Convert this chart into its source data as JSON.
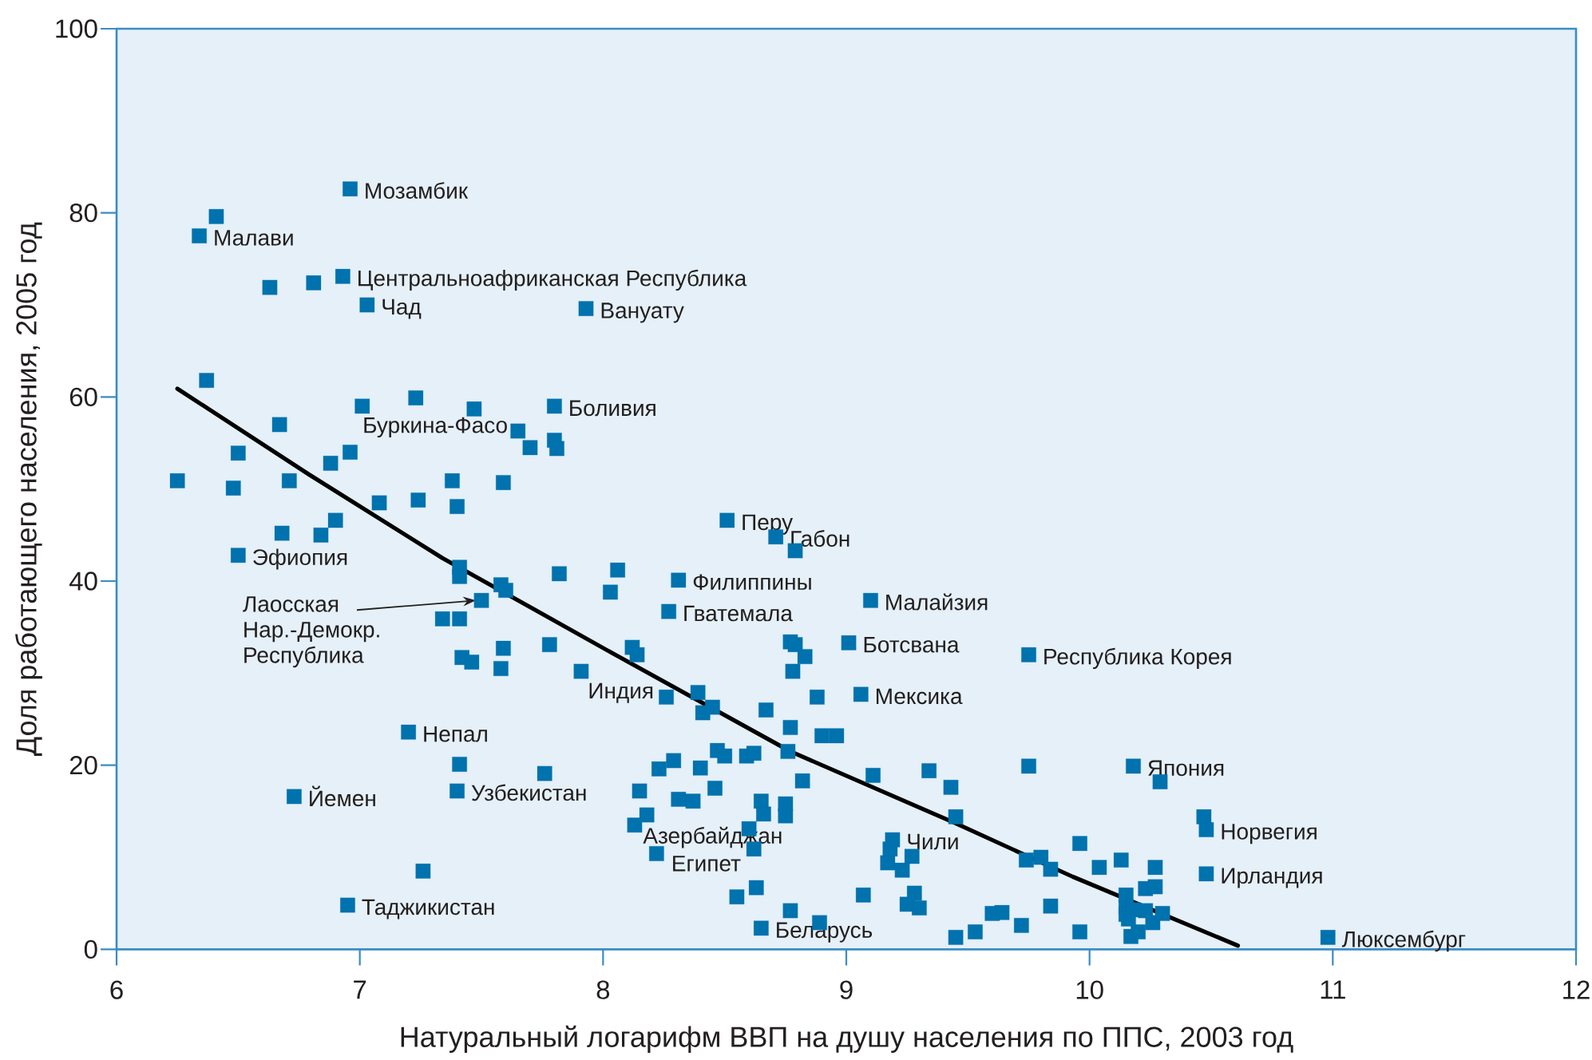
{
  "chart_data": {
    "type": "scatter",
    "xlabel": "Натуральный логарифм ВВП на душу населения по ППС, 2003 год",
    "ylabel": "Доля работающего населения, 2005 год",
    "xlim": [
      6,
      12
    ],
    "ylim": [
      0,
      100
    ],
    "xticks": [
      6,
      7,
      8,
      9,
      10,
      11,
      12
    ],
    "yticks": [
      0,
      20,
      40,
      60,
      80,
      100
    ],
    "marker": "square",
    "series": [
      {
        "color": "#0072ad",
        "x": [
          6.96,
          6.41,
          6.34,
          6.63,
          6.81,
          6.93,
          7.03,
          7.93,
          6.37,
          7.01,
          7.23,
          7.47,
          7.8,
          6.67,
          7.65,
          7.7,
          7.8,
          7.81,
          6.5,
          6.96,
          6.88,
          6.25,
          6.48,
          6.71,
          7.38,
          7.59,
          7.08,
          7.24,
          7.4,
          6.9,
          6.68,
          6.84,
          6.5,
          7.41,
          7.41,
          7.58,
          7.6,
          7.82,
          8.06,
          8.03,
          7.5,
          7.34,
          7.41,
          7.59,
          7.78,
          7.42,
          7.46,
          7.58,
          7.91,
          7.2,
          7.41,
          7.76,
          7.4,
          6.73,
          7.26,
          6.95,
          8.51,
          8.71,
          8.79,
          8.31,
          8.27,
          9.1,
          9.01,
          9.75,
          8.77,
          8.79,
          8.83,
          8.78,
          8.12,
          8.14,
          9.06,
          8.88,
          8.26,
          8.39,
          8.45,
          8.41,
          8.67,
          8.77,
          8.9,
          8.96,
          8.47,
          8.5,
          8.59,
          8.62,
          8.76,
          8.23,
          8.29,
          8.4,
          8.82,
          9.11,
          9.34,
          9.43,
          9.75,
          8.15,
          8.46,
          8.31,
          8.37,
          8.18,
          8.13,
          8.65,
          8.66,
          8.75,
          8.75,
          9.45,
          8.6,
          8.62,
          8.22,
          9.19,
          9.18,
          9.17,
          9.27,
          9.23,
          9.74,
          9.8,
          9.84,
          8.55,
          8.63,
          9.07,
          9.28,
          9.25,
          9.3,
          8.77,
          8.89,
          8.65,
          9.45,
          9.53,
          9.6,
          9.64,
          9.72,
          9.84,
          10.18,
          10.29,
          10.47,
          10.48,
          10.48,
          10.98,
          9.96,
          10.04,
          10.13,
          10.27,
          9.96,
          10.15,
          10.23,
          10.27,
          10.15,
          10.15,
          10.18,
          10.23,
          10.26,
          10.3,
          10.17,
          10.2,
          10.16
        ],
        "values": [
          82.6,
          79.6,
          77.5,
          71.9,
          72.4,
          73.1,
          70.0,
          69.6,
          61.8,
          59.0,
          59.9,
          58.7,
          59.0,
          57.0,
          56.3,
          54.5,
          55.3,
          54.4,
          53.9,
          54.0,
          52.8,
          50.9,
          50.1,
          50.9,
          50.9,
          50.7,
          48.5,
          48.8,
          48.1,
          46.6,
          45.2,
          45.0,
          42.8,
          41.5,
          40.5,
          39.6,
          39.0,
          40.8,
          41.2,
          38.8,
          37.9,
          35.9,
          35.9,
          32.7,
          33.1,
          31.7,
          31.2,
          30.5,
          30.2,
          23.6,
          20.1,
          19.1,
          17.2,
          16.6,
          8.5,
          4.8,
          46.6,
          44.8,
          43.3,
          40.1,
          36.7,
          37.9,
          33.3,
          32.0,
          33.4,
          33.1,
          31.8,
          30.2,
          32.8,
          32.0,
          27.7,
          27.4,
          27.4,
          27.9,
          26.3,
          25.7,
          26.0,
          24.1,
          23.2,
          23.2,
          21.6,
          21.0,
          21.0,
          21.3,
          21.5,
          19.6,
          20.5,
          19.7,
          18.3,
          18.9,
          19.4,
          17.6,
          19.9,
          17.2,
          17.5,
          16.3,
          16.1,
          14.6,
          13.5,
          16.1,
          14.7,
          15.8,
          14.5,
          14.4,
          13.1,
          10.9,
          10.4,
          11.9,
          10.9,
          9.4,
          10.1,
          8.6,
          9.7,
          10.0,
          8.7,
          5.7,
          6.7,
          5.9,
          6.1,
          4.9,
          4.5,
          4.2,
          2.9,
          2.3,
          1.3,
          1.9,
          3.9,
          4.0,
          2.6,
          4.7,
          19.9,
          18.2,
          14.4,
          13.0,
          8.2,
          1.3,
          11.5,
          8.9,
          9.7,
          8.9,
          1.9,
          5.9,
          6.6,
          6.8,
          4.6,
          3.8,
          4.3,
          4.2,
          2.9,
          3.9,
          1.4,
          1.9,
          3.3
        ]
      },
      {
        "type": "line",
        "color": "#000000",
        "marker": "none",
        "x": [
          6.25,
          6.79,
          7.34,
          8.05,
          8.77,
          9.44,
          9.93,
          10.61
        ],
        "values": [
          60.9,
          51.6,
          42.5,
          32.0,
          21.5,
          13.8,
          7.9,
          0.4
        ]
      }
    ],
    "annotations": [
      {
        "text": "Мозамбик",
        "x": 6.96,
        "y": 82.6
      },
      {
        "text": "Малави",
        "x": 6.34,
        "y": 77.5
      },
      {
        "text": "Центральноафриканская Республика",
        "x": 6.93,
        "y": 73.1
      },
      {
        "text": "Чад",
        "x": 7.03,
        "y": 70.0
      },
      {
        "text": "Вануату",
        "x": 7.93,
        "y": 69.6
      },
      {
        "text": "Боливия",
        "x": 7.8,
        "y": 59.0
      },
      {
        "text": "Буркина-Фасо",
        "x": 7.01,
        "y": 59.0
      },
      {
        "text": "Эфиопия",
        "x": 6.5,
        "y": 42.8
      },
      {
        "text": "Лаосская Нар.-Демокр. Республика",
        "x": 7.5,
        "y": 37.9
      },
      {
        "text": "Перу",
        "x": 8.51,
        "y": 46.6
      },
      {
        "text": "Габон",
        "x": 8.71,
        "y": 44.8
      },
      {
        "text": "Филиппины",
        "x": 8.31,
        "y": 40.1
      },
      {
        "text": "Гватемала",
        "x": 8.27,
        "y": 36.7
      },
      {
        "text": "Малайзия",
        "x": 9.1,
        "y": 37.9
      },
      {
        "text": "Ботсвана",
        "x": 9.01,
        "y": 33.3
      },
      {
        "text": "Республика Корея",
        "x": 9.75,
        "y": 32.0
      },
      {
        "text": "Индия",
        "x": 7.91,
        "y": 30.2
      },
      {
        "text": "Мексика",
        "x": 9.06,
        "y": 27.7
      },
      {
        "text": "Непал",
        "x": 7.2,
        "y": 23.6
      },
      {
        "text": "Йемен",
        "x": 6.73,
        "y": 16.6
      },
      {
        "text": "Узбекистан",
        "x": 7.4,
        "y": 17.2
      },
      {
        "text": "Азербайджан",
        "x": 8.13,
        "y": 13.5
      },
      {
        "text": "Египет",
        "x": 8.22,
        "y": 10.4
      },
      {
        "text": "Чили",
        "x": 9.19,
        "y": 11.9
      },
      {
        "text": "Беларусь",
        "x": 8.65,
        "y": 2.3
      },
      {
        "text": "Таджикистан",
        "x": 6.95,
        "y": 4.8
      },
      {
        "text": "Япония",
        "x": 10.18,
        "y": 19.9
      },
      {
        "text": "Норвегия",
        "x": 10.48,
        "y": 13.0
      },
      {
        "text": "Ирландия",
        "x": 10.48,
        "y": 8.2
      },
      {
        "text": "Люксембург",
        "x": 10.98,
        "y": 1.3
      }
    ]
  }
}
